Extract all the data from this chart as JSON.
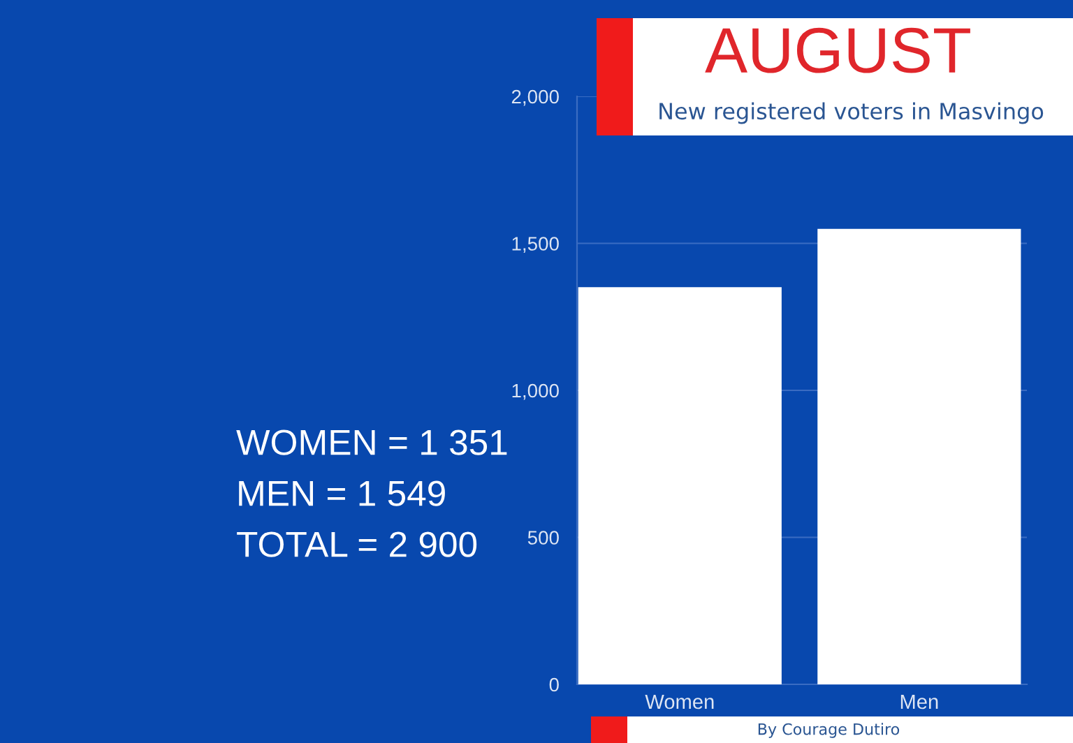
{
  "chart_data": {
    "type": "bar",
    "title": "AUGUST",
    "subtitle": "New registered voters in Masvingo",
    "categories": [
      "Women",
      "Men"
    ],
    "values": [
      1351,
      1549
    ],
    "color": "#ffffff",
    "ylim": [
      0,
      2000
    ],
    "yticks": [
      0,
      500,
      {
        "value": 1000,
        "label": "1,000"
      },
      {
        "value": 1500,
        "label": "1,500"
      },
      {
        "value": 2000,
        "label": "2,000"
      }
    ],
    "grid": "y",
    "annotations": [
      "WOMEN = 1 351",
      "MEN = 1 549",
      "TOTAL = 2 900",
      "By Courage Dutiro"
    ]
  }
}
